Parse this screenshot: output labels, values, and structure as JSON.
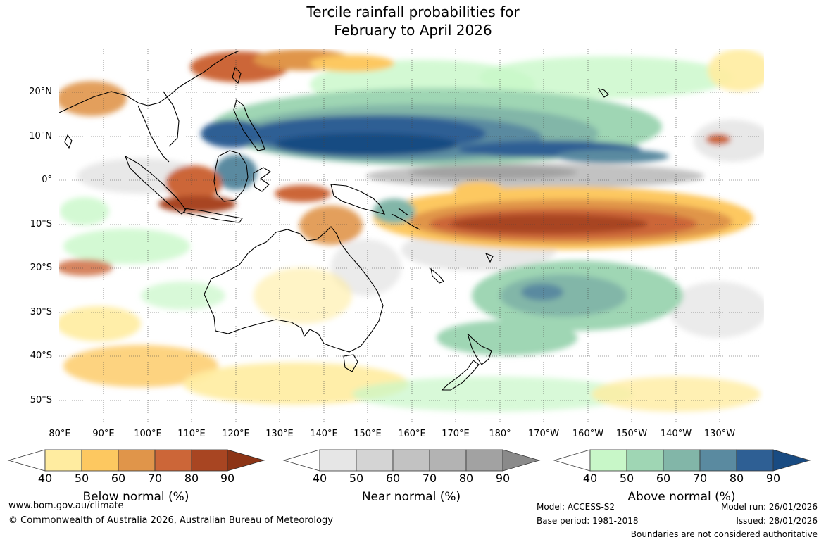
{
  "title": {
    "line1": "Tercile rainfall probabilities for",
    "line2": "February to April 2026"
  },
  "axes": {
    "latitude_labels": [
      "20°N",
      "10°N",
      "0°",
      "10°S",
      "20°S",
      "30°S",
      "40°S",
      "50°S"
    ],
    "longitude_labels": [
      "80°E",
      "90°E",
      "100°E",
      "110°E",
      "120°E",
      "130°E",
      "140°E",
      "150°E",
      "160°E",
      "170°E",
      "180°",
      "170°W",
      "160°W",
      "150°W",
      "140°W",
      "130°W"
    ]
  },
  "colorbars": [
    {
      "title": "Below normal (%)",
      "ticks": [
        "40",
        "50",
        "60",
        "70",
        "80",
        "90"
      ],
      "colors": [
        "#ffffff",
        "#ffeca0",
        "#fdc860",
        "#e0954a",
        "#cc6638",
        "#a84522",
        "#8c3416"
      ]
    },
    {
      "title": "Near normal (%)",
      "ticks": [
        "40",
        "50",
        "60",
        "70",
        "80",
        "90"
      ],
      "colors": [
        "#ffffff",
        "#e6e6e6",
        "#d4d4d4",
        "#c2c2c2",
        "#b3b3b3",
        "#a2a2a2",
        "#8a8a8a"
      ]
    },
    {
      "title": "Above normal (%)",
      "ticks": [
        "40",
        "50",
        "60",
        "70",
        "80",
        "90"
      ],
      "colors": [
        "#ffffff",
        "#c8f7c8",
        "#9fd6b4",
        "#82b6a8",
        "#5a8aa0",
        "#2e5f94",
        "#194b82"
      ]
    }
  ],
  "footer": {
    "website": "www.bom.gov.au/climate",
    "copyright": "© Commonwealth of Australia 2026, Australian Bureau of Meteorology",
    "model": "Model: ACCESS-S2",
    "base_period": "Base period: 1981-2018",
    "model_run": "Model run: 26/01/2026",
    "issued": "Issued: 28/01/2026",
    "disclaimer": "Boundaries are not considered authoritative"
  }
}
